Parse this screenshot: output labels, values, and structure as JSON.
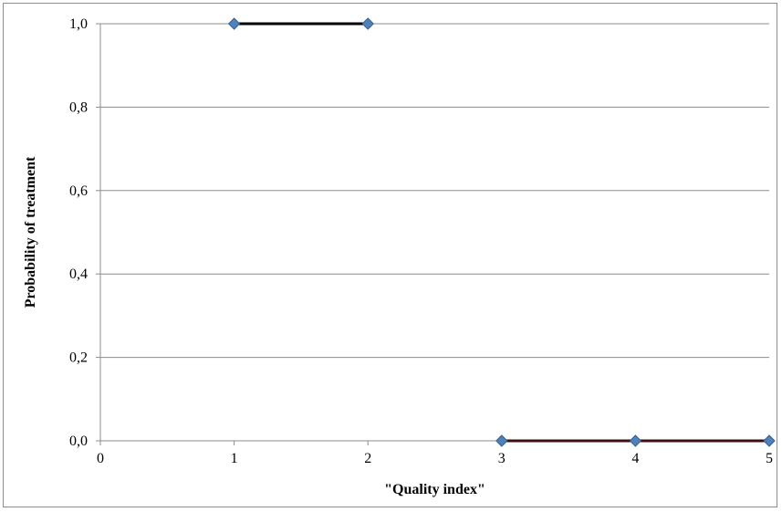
{
  "chart_data": {
    "type": "line",
    "title": "",
    "xlabel": "\"Quality index\"",
    "ylabel": "Probability of treatment",
    "xlim": [
      0,
      5
    ],
    "ylim": [
      0,
      1
    ],
    "xticks": [
      0,
      1,
      2,
      3,
      4,
      5
    ],
    "xtick_labels": [
      "0",
      "1",
      "2",
      "3",
      "4",
      "5"
    ],
    "yticks": [
      0,
      0.2,
      0.4,
      0.6,
      0.8,
      1.0
    ],
    "ytick_labels": [
      "0,0",
      "0,2",
      "0,4",
      "0,6",
      "0,8",
      "1,0"
    ],
    "grid": "horizontal",
    "legend": "none",
    "points": [
      {
        "x": 1,
        "y": 1.0
      },
      {
        "x": 2,
        "y": 1.0
      },
      {
        "x": 3,
        "y": 0.0
      },
      {
        "x": 4,
        "y": 0.0
      },
      {
        "x": 5,
        "y": 0.0
      }
    ],
    "segments": [
      {
        "x": [
          1,
          2
        ],
        "y": [
          1.0,
          1.0
        ]
      },
      {
        "x": [
          3,
          5
        ],
        "y": [
          0.0,
          0.0
        ]
      }
    ],
    "colors": {
      "marker": "#4f81bd",
      "marker_edge": "#385d8a",
      "upper_segment": "#000000",
      "lower_segment": "#3a0f0f",
      "grid": "#8c8c8c"
    }
  }
}
